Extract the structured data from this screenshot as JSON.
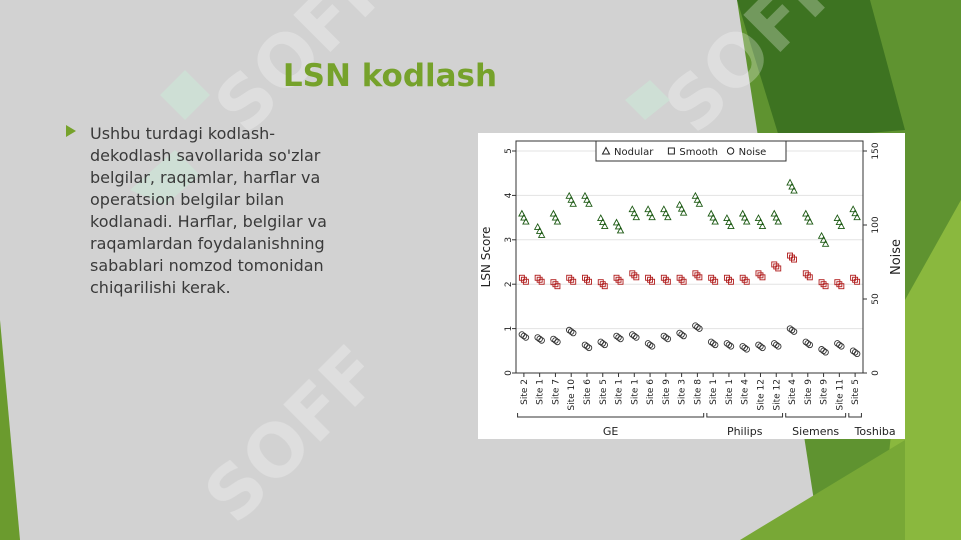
{
  "slide": {
    "title": "LSN kodlash",
    "body": " Ushbu turdagi kodlash-\ndekodlash savollarida so'zlar\nbelgilar, raqamlar, harflar va\noperatsion belgilar bilan\nkodlanadi. Harflar, belgilar va\nraqamlardan foydalanishning\nsabablari nomzod tomonidan\nchiqarilishi kerak.",
    "watermark": "SOFF",
    "colors": {
      "accent": "#76a22b",
      "dark_green": "#3f7a22",
      "bg": "#d2d2d2"
    },
    "icons": {
      "bullet": "triangle-right-icon"
    }
  },
  "chart_data": {
    "type": "scatter",
    "ylabel": "LSN Score",
    "y2label": "Noise",
    "ylim": [
      0,
      5
    ],
    "yticks": [
      0,
      1,
      2,
      3,
      4,
      5
    ],
    "y2lim": [
      0,
      150
    ],
    "y2ticks": [
      0,
      50,
      100,
      150
    ],
    "categories": [
      "Site 2",
      "Site 1",
      "Site 7",
      "Site 10",
      "Site 6",
      "Site 5",
      "Site 1",
      "Site 1",
      "Site 6",
      "Site 9",
      "Site 3",
      "Site 8",
      "Site 1",
      "Site 1",
      "Site 4",
      "Site 12",
      "Site 12",
      "Site 4",
      "Site 9",
      "Site 9",
      "Site 11",
      "Site 5"
    ],
    "groups": [
      {
        "label": "GE",
        "from": 0,
        "to": 11
      },
      {
        "label": "Philips",
        "from": 12,
        "to": 16
      },
      {
        "label": "Siemens",
        "from": 17,
        "to": 20
      },
      {
        "label": "Toshiba",
        "from": 21,
        "to": 21
      }
    ],
    "legend_position": "top",
    "series": [
      {
        "name": "Nodular",
        "marker": "triangle",
        "color": "#1d5a14",
        "values": [
          3.5,
          3.2,
          3.5,
          3.9,
          3.9,
          3.4,
          3.3,
          3.6,
          3.6,
          3.6,
          3.7,
          3.9,
          3.5,
          3.4,
          3.5,
          3.4,
          3.5,
          4.2,
          3.5,
          3.0,
          3.4,
          3.6
        ]
      },
      {
        "name": "Smooth",
        "marker": "square",
        "color": "#b01c1c",
        "values": [
          2.1,
          2.1,
          2.0,
          2.1,
          2.1,
          2.0,
          2.1,
          2.2,
          2.1,
          2.1,
          2.1,
          2.2,
          2.1,
          2.1,
          2.1,
          2.2,
          2.4,
          2.6,
          2.2,
          2.0,
          2.0,
          2.1
        ]
      },
      {
        "name": "Noise",
        "marker": "circle",
        "color": "#333333",
        "values": [
          25,
          23,
          22,
          28,
          18,
          20,
          24,
          25,
          19,
          24,
          26,
          31,
          20,
          19,
          17,
          18,
          19,
          29,
          20,
          15,
          19,
          14
        ]
      }
    ]
  }
}
